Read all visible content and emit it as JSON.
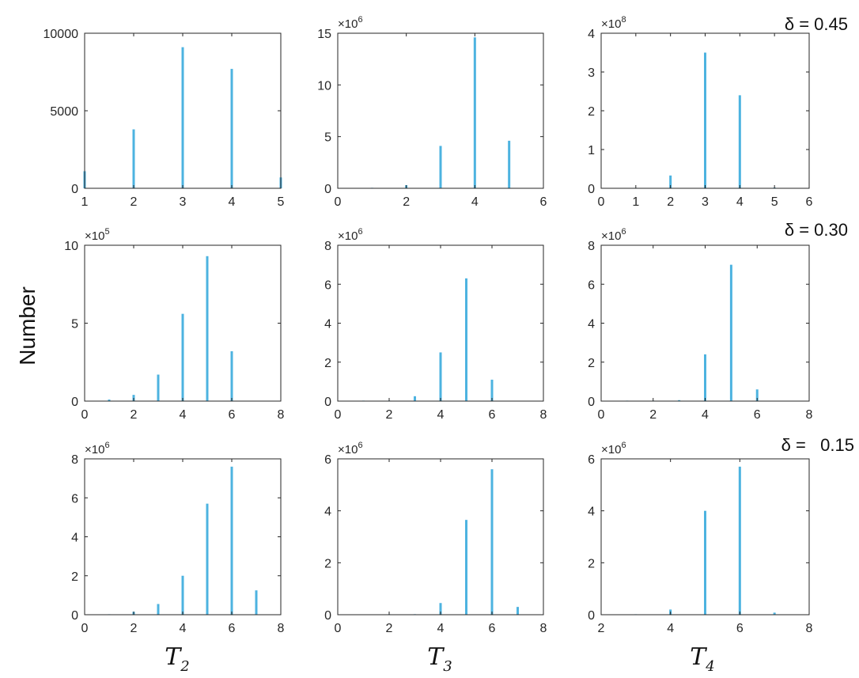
{
  "figure": {
    "ylabel": "Number",
    "xlabels": [
      {
        "main": "T",
        "sub": "2"
      },
      {
        "main": "T",
        "sub": "3"
      },
      {
        "main": "T",
        "sub": "4"
      }
    ],
    "row_labels": [
      "δ = 0.45",
      "δ = 0.30",
      "δ =   0.15"
    ]
  },
  "colors": {
    "bar": "#4DB3E0",
    "axis": "#262626",
    "text": "#262626"
  },
  "chart_data": [
    {
      "type": "bar",
      "row": 0,
      "col": 0,
      "title": "",
      "xlabel": "",
      "ylabel": "",
      "xlim": [
        1,
        5
      ],
      "ylim": [
        0,
        10000
      ],
      "xticks": [
        1,
        2,
        3,
        4,
        5
      ],
      "xtick_labels": [
        "1",
        "2",
        "3",
        "4",
        "5"
      ],
      "yticks": [
        0,
        5000,
        10000
      ],
      "ytick_labels": [
        "0",
        "5000",
        "10000"
      ],
      "multiplier": "",
      "x": [
        1,
        2,
        3,
        4,
        5
      ],
      "values": [
        1100,
        3800,
        9100,
        7700,
        700
      ]
    },
    {
      "type": "bar",
      "row": 0,
      "col": 1,
      "title": "",
      "xlabel": "",
      "ylabel": "",
      "xlim": [
        0,
        6
      ],
      "ylim": [
        0,
        15
      ],
      "xticks": [
        0,
        2,
        4,
        6
      ],
      "xtick_labels": [
        "0",
        "2",
        "4",
        "6"
      ],
      "yticks": [
        0,
        5,
        10,
        15
      ],
      "ytick_labels": [
        "0",
        "5",
        "10",
        "15"
      ],
      "multiplier": "×10",
      "multiplier_exp": "6",
      "x": [
        1,
        2,
        3,
        4,
        5
      ],
      "values": [
        0.05,
        0.3,
        4.1,
        14.6,
        4.6
      ]
    },
    {
      "type": "bar",
      "row": 0,
      "col": 2,
      "title": "",
      "xlabel": "",
      "ylabel": "",
      "xlim": [
        0,
        6
      ],
      "ylim": [
        0,
        4
      ],
      "xticks": [
        0,
        1,
        2,
        3,
        4,
        5,
        6
      ],
      "xtick_labels": [
        "0",
        "1",
        "2",
        "3",
        "4",
        "5",
        "6"
      ],
      "yticks": [
        0,
        1,
        2,
        3,
        4
      ],
      "ytick_labels": [
        "0",
        "1",
        "2",
        "3",
        "4"
      ],
      "multiplier": "×10",
      "multiplier_exp": "8",
      "x": [
        1,
        2,
        3,
        4,
        5
      ],
      "values": [
        0.01,
        0.33,
        3.5,
        2.4,
        0.02
      ]
    },
    {
      "type": "bar",
      "row": 1,
      "col": 0,
      "title": "",
      "xlabel": "",
      "ylabel": "",
      "xlim": [
        0,
        8
      ],
      "ylim": [
        0,
        10
      ],
      "xticks": [
        0,
        2,
        4,
        6,
        8
      ],
      "xtick_labels": [
        "0",
        "2",
        "4",
        "6",
        "8"
      ],
      "yticks": [
        0,
        5,
        10
      ],
      "ytick_labels": [
        "0",
        "5",
        "10"
      ],
      "multiplier": "×10",
      "multiplier_exp": "5",
      "x": [
        1,
        2,
        3,
        4,
        5,
        6
      ],
      "values": [
        0.1,
        0.4,
        1.7,
        5.6,
        9.3,
        3.2
      ]
    },
    {
      "type": "bar",
      "row": 1,
      "col": 1,
      "title": "",
      "xlabel": "",
      "ylabel": "",
      "xlim": [
        0,
        8
      ],
      "ylim": [
        0,
        8
      ],
      "xticks": [
        0,
        2,
        4,
        6,
        8
      ],
      "xtick_labels": [
        "0",
        "2",
        "4",
        "6",
        "8"
      ],
      "yticks": [
        0,
        2,
        4,
        6,
        8
      ],
      "ytick_labels": [
        "0",
        "2",
        "4",
        "6",
        "8"
      ],
      "multiplier": "×10",
      "multiplier_exp": "6",
      "x": [
        1,
        2,
        3,
        4,
        5,
        6
      ],
      "values": [
        0.01,
        0.02,
        0.25,
        2.5,
        6.3,
        1.1
      ]
    },
    {
      "type": "bar",
      "row": 1,
      "col": 2,
      "title": "",
      "xlabel": "",
      "ylabel": "",
      "xlim": [
        0,
        8
      ],
      "ylim": [
        0,
        8
      ],
      "xticks": [
        0,
        2,
        4,
        6,
        8
      ],
      "xtick_labels": [
        "0",
        "2",
        "4",
        "6",
        "8"
      ],
      "yticks": [
        0,
        2,
        4,
        6,
        8
      ],
      "ytick_labels": [
        "0",
        "2",
        "4",
        "6",
        "8"
      ],
      "multiplier": "×10",
      "multiplier_exp": "6",
      "x": [
        1,
        2,
        3,
        4,
        5,
        6
      ],
      "values": [
        0.01,
        0.02,
        0.05,
        2.4,
        7.0,
        0.6
      ]
    },
    {
      "type": "bar",
      "row": 2,
      "col": 0,
      "title": "",
      "xlabel": "",
      "ylabel": "",
      "xlim": [
        0,
        8
      ],
      "ylim": [
        0,
        8
      ],
      "xticks": [
        0,
        2,
        4,
        6,
        8
      ],
      "xtick_labels": [
        "0",
        "2",
        "4",
        "6",
        "8"
      ],
      "yticks": [
        0,
        2,
        4,
        6,
        8
      ],
      "ytick_labels": [
        "0",
        "2",
        "4",
        "6",
        "8"
      ],
      "multiplier": "×10",
      "multiplier_exp": "6",
      "x": [
        1,
        2,
        3,
        4,
        5,
        6,
        7
      ],
      "values": [
        0.01,
        0.15,
        0.55,
        2.0,
        5.7,
        7.6,
        1.25
      ]
    },
    {
      "type": "bar",
      "row": 2,
      "col": 1,
      "title": "",
      "xlabel": "",
      "ylabel": "",
      "xlim": [
        0,
        8
      ],
      "ylim": [
        0,
        6
      ],
      "xticks": [
        0,
        2,
        4,
        6,
        8
      ],
      "xtick_labels": [
        "0",
        "2",
        "4",
        "6",
        "8"
      ],
      "yticks": [
        0,
        2,
        4,
        6
      ],
      "ytick_labels": [
        "0",
        "2",
        "4",
        "6"
      ],
      "multiplier": "×10",
      "multiplier_exp": "6",
      "x": [
        2,
        3,
        4,
        5,
        6,
        7
      ],
      "values": [
        0.01,
        0.02,
        0.45,
        3.65,
        5.6,
        0.3
      ]
    },
    {
      "type": "bar",
      "row": 2,
      "col": 2,
      "title": "",
      "xlabel": "",
      "ylabel": "",
      "xlim": [
        2,
        8
      ],
      "ylim": [
        0,
        6
      ],
      "xticks": [
        2,
        4,
        6,
        8
      ],
      "xtick_labels": [
        "2",
        "4",
        "6",
        "8"
      ],
      "yticks": [
        0,
        2,
        4,
        6
      ],
      "ytick_labels": [
        "0",
        "2",
        "4",
        "6"
      ],
      "multiplier": "×10",
      "multiplier_exp": "6",
      "x": [
        3,
        4,
        5,
        6,
        7
      ],
      "values": [
        0.01,
        0.2,
        4.0,
        5.7,
        0.08
      ]
    }
  ]
}
